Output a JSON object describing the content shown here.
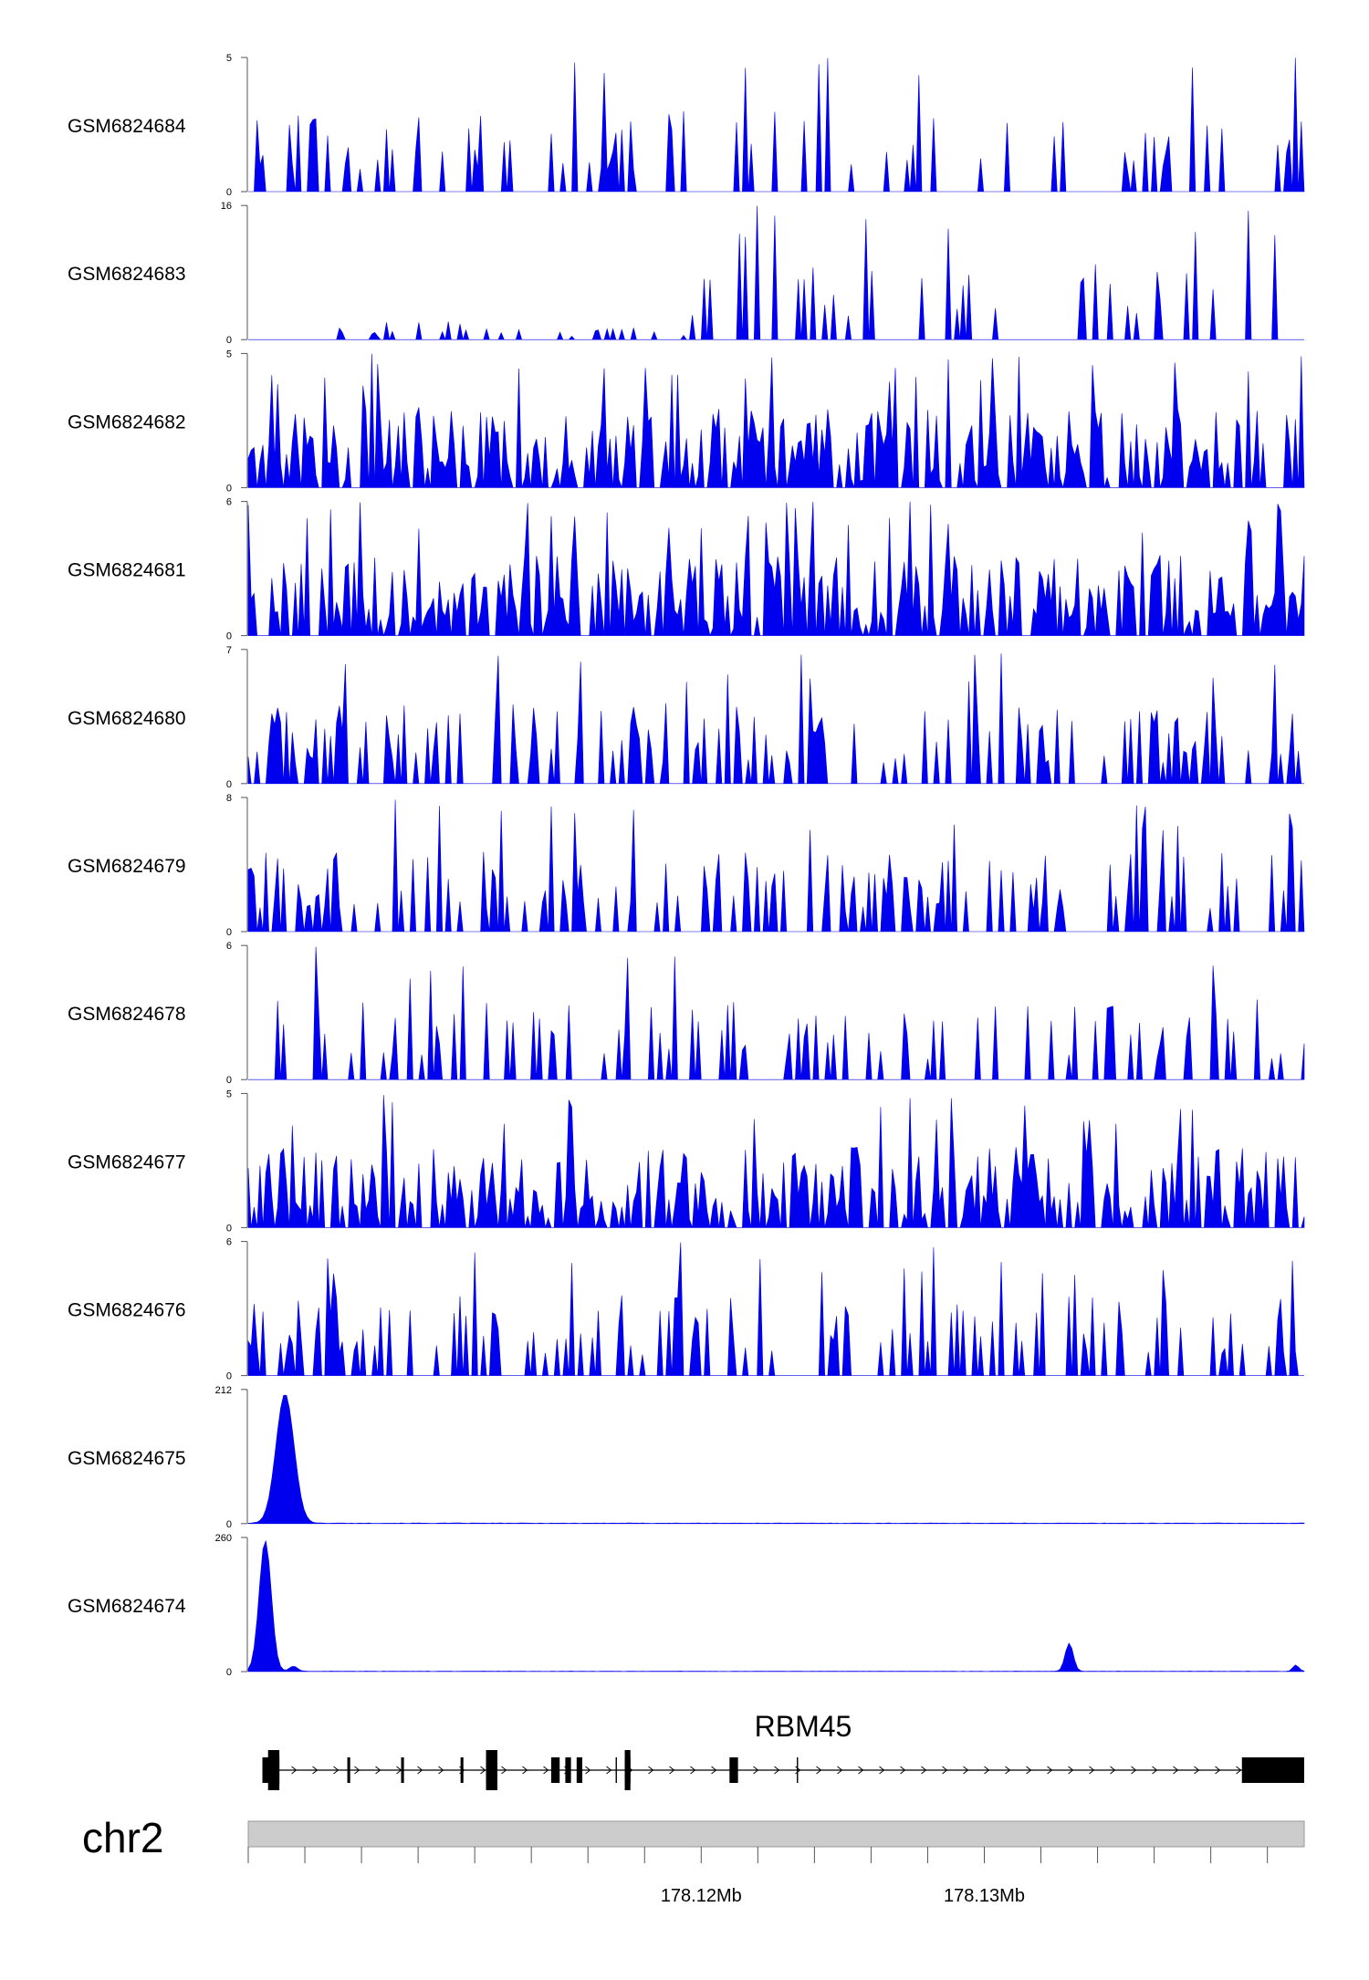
{
  "chart_data": {
    "type": "area",
    "region": {
      "chrom": "chr2",
      "start_mb": 178.104,
      "end_mb": 178.1413
    },
    "fill_color": "#0000ee",
    "tracks": [
      {
        "name": "GSM6824684",
        "ymax": "5",
        "ymin": "0",
        "shape": "sparse",
        "max": 5,
        "seed": 11
      },
      {
        "name": "GSM6824683",
        "ymax": "16",
        "ymin": "0",
        "shape": "gappy",
        "max": 16,
        "seed": 23
      },
      {
        "name": "GSM6824682",
        "ymax": "5",
        "ymin": "0",
        "shape": "dense",
        "max": 5,
        "seed": 37
      },
      {
        "name": "GSM6824681",
        "ymax": "6",
        "ymin": "0",
        "shape": "dense",
        "max": 6,
        "seed": 41
      },
      {
        "name": "GSM6824680",
        "ymax": "7",
        "ymin": "0",
        "shape": "medium",
        "max": 7,
        "seed": 53
      },
      {
        "name": "GSM6824679",
        "ymax": "8",
        "ymin": "0",
        "shape": "medium",
        "max": 8,
        "seed": 67
      },
      {
        "name": "GSM6824678",
        "ymax": "6",
        "ymin": "0",
        "shape": "sparse",
        "max": 6,
        "seed": 71
      },
      {
        "name": "GSM6824677",
        "ymax": "5",
        "ymin": "0",
        "shape": "dense",
        "max": 5,
        "seed": 83
      },
      {
        "name": "GSM6824676",
        "ymax": "6",
        "ymin": "0",
        "shape": "medium",
        "max": 6,
        "seed": 97
      },
      {
        "name": "GSM6824675",
        "ymax": "212",
        "ymin": "0",
        "shape": "peak",
        "max": 212,
        "seed": 101,
        "peaks": [
          {
            "x": 178.1053,
            "h": 205,
            "w": 0.00045
          }
        ]
      },
      {
        "name": "GSM6824674",
        "ymax": "260",
        "ymin": "0",
        "shape": "peak",
        "max": 260,
        "seed": 113,
        "peaks": [
          {
            "x": 178.1046,
            "h": 255,
            "w": 0.0003
          },
          {
            "x": 178.1056,
            "h": 10,
            "w": 0.0002
          },
          {
            "x": 178.133,
            "h": 55,
            "w": 0.0002
          },
          {
            "x": 178.141,
            "h": 12,
            "w": 0.00015
          }
        ]
      }
    ],
    "gene": {
      "name": "RBM45",
      "exons": [
        [
          178.1045,
          178.1051
        ],
        [
          178.1075,
          178.1076
        ],
        [
          178.1094,
          178.1095
        ],
        [
          178.1115,
          178.1116
        ],
        [
          178.1124,
          178.1128
        ],
        [
          178.1147,
          178.115
        ],
        [
          178.1152,
          178.1154
        ],
        [
          178.1156,
          178.1158
        ],
        [
          178.1173,
          178.1175
        ],
        [
          178.121,
          178.1213
        ],
        [
          178.1391,
          178.1413
        ]
      ],
      "tall_exons": [
        [
          178.1047,
          178.1051
        ],
        [
          178.1124,
          178.1128
        ],
        [
          178.1173,
          178.1175
        ]
      ],
      "thin_marks": [
        178.117,
        178.1234
      ]
    },
    "chrom_label": "chr2",
    "x_tick_labels": [
      {
        "mb": 178.12,
        "label": "178.12Mb"
      },
      {
        "mb": 178.13,
        "label": "178.13Mb"
      }
    ],
    "x_ticks_mb": [
      178.104,
      178.106,
      178.108,
      178.11,
      178.112,
      178.114,
      178.116,
      178.118,
      178.12,
      178.122,
      178.124,
      178.126,
      178.128,
      178.13,
      178.132,
      178.134,
      178.136,
      178.138,
      178.14
    ]
  }
}
